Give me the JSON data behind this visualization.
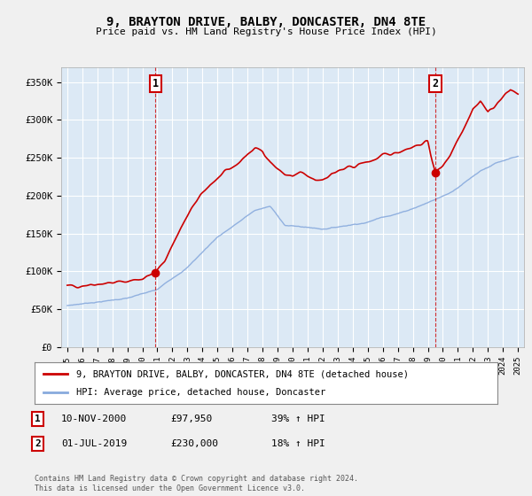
{
  "title": "9, BRAYTON DRIVE, BALBY, DONCASTER, DN4 8TE",
  "subtitle": "Price paid vs. HM Land Registry's House Price Index (HPI)",
  "fig_bg_color": "#f0f0f0",
  "plot_bg_color": "#dce9f5",
  "grid_color": "#ffffff",
  "sale1_date_num": 2000.87,
  "sale1_price": 97950,
  "sale2_date_num": 2019.5,
  "sale2_price": 230000,
  "yticks": [
    0,
    50000,
    100000,
    150000,
    200000,
    250000,
    300000,
    350000
  ],
  "ytick_labels": [
    "£0",
    "£50K",
    "£100K",
    "£150K",
    "£200K",
    "£250K",
    "£300K",
    "£350K"
  ],
  "xlim": [
    1994.6,
    2025.4
  ],
  "ylim": [
    0,
    370000
  ],
  "xticks": [
    1995,
    1996,
    1997,
    1998,
    1999,
    2000,
    2001,
    2002,
    2003,
    2004,
    2005,
    2006,
    2007,
    2008,
    2009,
    2010,
    2011,
    2012,
    2013,
    2014,
    2015,
    2016,
    2017,
    2018,
    2019,
    2020,
    2021,
    2022,
    2023,
    2024,
    2025
  ],
  "red_line_label": "9, BRAYTON DRIVE, BALBY, DONCASTER, DN4 8TE (detached house)",
  "blue_line_label": "HPI: Average price, detached house, Doncaster",
  "footnote": "Contains HM Land Registry data © Crown copyright and database right 2024.\nThis data is licensed under the Open Government Licence v3.0.",
  "red_color": "#cc0000",
  "blue_color": "#88aadd",
  "sale1_text": "10-NOV-2000",
  "sale1_price_text": "£97,950",
  "sale1_hpi_text": "39% ↑ HPI",
  "sale2_text": "01-JUL-2019",
  "sale2_price_text": "£230,000",
  "sale2_hpi_text": "18% ↑ HPI"
}
